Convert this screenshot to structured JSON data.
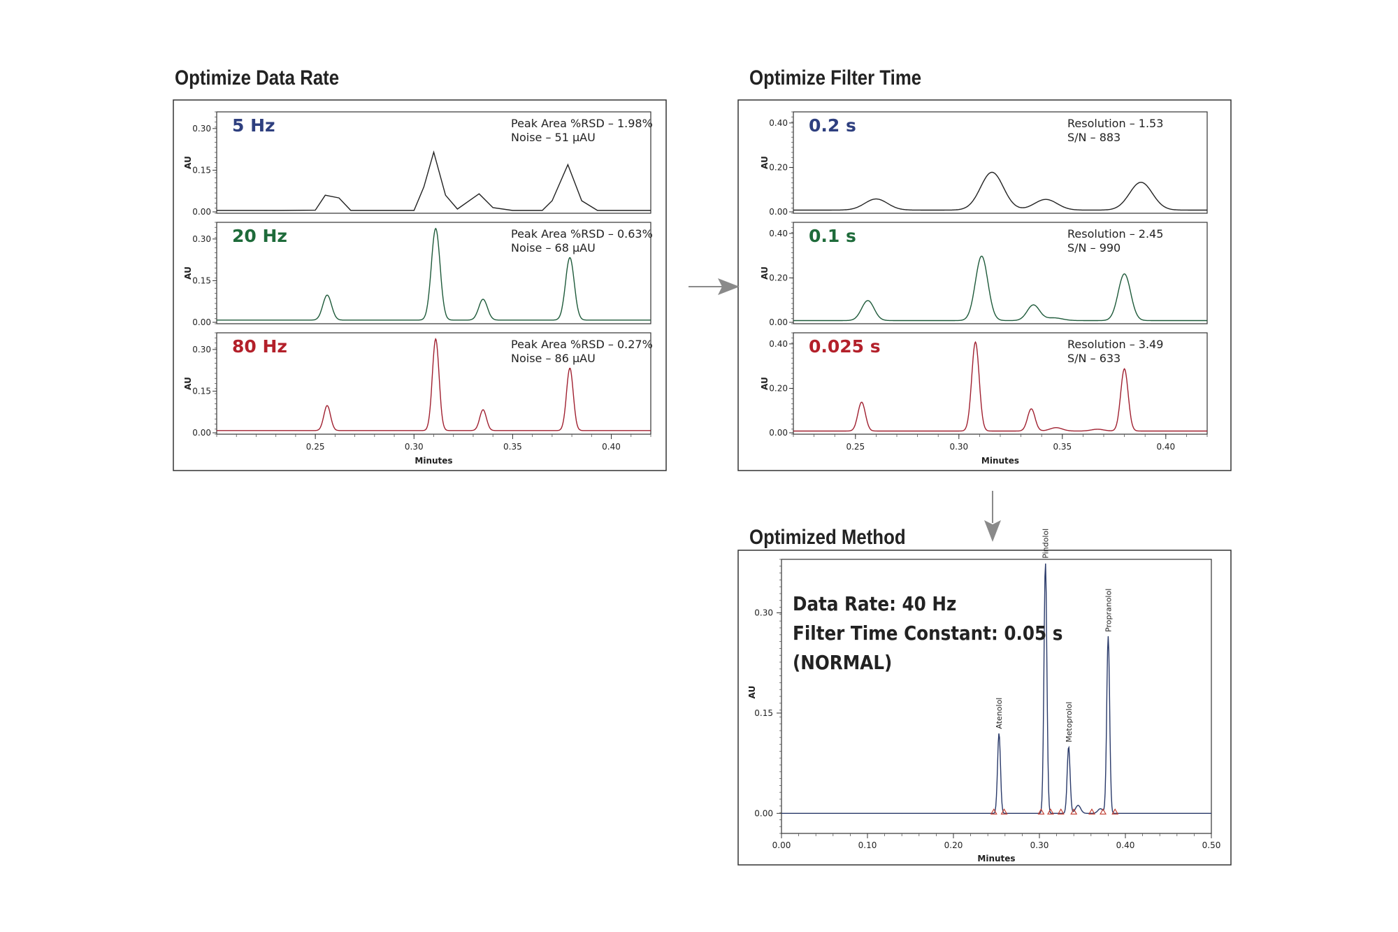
{
  "sections": {
    "data_rate_title": "Optimize Data Rate",
    "filter_time_title": "Optimize Filter Time",
    "optimized_title": "Optimized Method"
  },
  "colors": {
    "blue": "#2e3f7f",
    "green": "#1e6b3a",
    "red": "#b3202a",
    "trace_dark": "#222222",
    "marker_red": "#c0392b",
    "arrow": "#8a8a8a"
  },
  "chart_data": [
    {
      "id": "data_rate",
      "type": "line",
      "xlabel": "Minutes",
      "xlim": [
        0.2,
        0.42
      ],
      "xticks": [
        "0.25",
        "0.30",
        "0.35",
        "0.40"
      ],
      "panels": [
        {
          "label": "5 Hz",
          "label_color": "#2e3f7f",
          "trace_color": "#222222",
          "ylabel": "AU",
          "ylim": [
            0.0,
            0.36
          ],
          "yticks": [
            "0.00",
            "0.15",
            "0.30"
          ],
          "stats": [
            "Peak Area %RSD – 1.98%",
            "Noise – 51 µAU"
          ],
          "x": [
            0.2,
            0.233,
            0.25,
            0.255,
            0.262,
            0.268,
            0.28,
            0.283,
            0.3,
            0.305,
            0.31,
            0.316,
            0.322,
            0.33,
            0.333,
            0.34,
            0.35,
            0.365,
            0.37,
            0.378,
            0.385,
            0.393,
            0.42
          ],
          "y": [
            0.005,
            0.005,
            0.006,
            0.06,
            0.05,
            0.005,
            0.005,
            0.005,
            0.005,
            0.09,
            0.215,
            0.06,
            0.01,
            0.05,
            0.065,
            0.015,
            0.005,
            0.005,
            0.04,
            0.17,
            0.04,
            0.005,
            0.005
          ]
        },
        {
          "label": "20 Hz",
          "label_color": "#1e6b3a",
          "trace_color": "#1e5a3a",
          "ylabel": "AU",
          "ylim": [
            0.0,
            0.36
          ],
          "yticks": [
            "0.00",
            "0.15",
            "0.30"
          ],
          "stats": [
            "Peak Area %RSD – 0.63%",
            "Noise – 68 µAU"
          ],
          "peaks": [
            [
              0.256,
              0.09,
              0.0022
            ],
            [
              0.311,
              0.33,
              0.0022
            ],
            [
              0.335,
              0.075,
              0.0022
            ],
            [
              0.379,
              0.225,
              0.0022
            ]
          ]
        },
        {
          "label": "80 Hz",
          "label_color": "#b3202a",
          "trace_color": "#a02030",
          "ylabel": "AU",
          "ylim": [
            0.0,
            0.36
          ],
          "yticks": [
            "0.00",
            "0.15",
            "0.30"
          ],
          "stats": [
            "Peak Area %RSD – 0.27%",
            "Noise – 86 µAU"
          ],
          "peaks": [
            [
              0.256,
              0.09,
              0.0017
            ],
            [
              0.311,
              0.33,
              0.0017
            ],
            [
              0.335,
              0.075,
              0.0017
            ],
            [
              0.379,
              0.225,
              0.0017
            ]
          ]
        }
      ]
    },
    {
      "id": "filter_time",
      "type": "line",
      "xlabel": "Minutes",
      "xlim": [
        0.22,
        0.42
      ],
      "xticks": [
        "0.25",
        "0.30",
        "0.35",
        "0.40"
      ],
      "panels": [
        {
          "label": "0.2 s",
          "label_color": "#2e3f7f",
          "trace_color": "#222222",
          "ylabel": "AU",
          "ylim": [
            0.0,
            0.45
          ],
          "yticks": [
            "0.00",
            "0.20",
            "0.40"
          ],
          "stats": [
            "Resolution – 1.53",
            "S/N – 883"
          ],
          "peaks": [
            [
              0.26,
              0.05,
              0.0055
            ],
            [
              0.316,
              0.17,
              0.0055
            ],
            [
              0.342,
              0.048,
              0.0055
            ],
            [
              0.388,
              0.125,
              0.0055
            ]
          ]
        },
        {
          "label": "0.1 s",
          "label_color": "#1e6b3a",
          "trace_color": "#1e5a3a",
          "ylabel": "AU",
          "ylim": [
            0.0,
            0.45
          ],
          "yticks": [
            "0.00",
            "0.20",
            "0.40"
          ],
          "stats": [
            "Resolution – 2.45",
            "S/N – 990"
          ],
          "peaks": [
            [
              0.256,
              0.09,
              0.003
            ],
            [
              0.311,
              0.29,
              0.003
            ],
            [
              0.336,
              0.07,
              0.003
            ],
            [
              0.346,
              0.012,
              0.004
            ],
            [
              0.38,
              0.21,
              0.003
            ]
          ]
        },
        {
          "label": "0.025 s",
          "label_color": "#b3202a",
          "trace_color": "#a02030",
          "ylabel": "AU",
          "ylim": [
            0.0,
            0.45
          ],
          "yticks": [
            "0.00",
            "0.20",
            "0.40"
          ],
          "stats": [
            "Resolution – 3.49",
            "S/N – 633"
          ],
          "peaks": [
            [
              0.253,
              0.13,
              0.0018
            ],
            [
              0.308,
              0.4,
              0.0018
            ],
            [
              0.335,
              0.1,
              0.0018
            ],
            [
              0.347,
              0.015,
              0.003
            ],
            [
              0.367,
              0.008,
              0.003
            ],
            [
              0.38,
              0.28,
              0.0018
            ]
          ]
        }
      ]
    },
    {
      "id": "optimized",
      "type": "line",
      "xlabel": "Minutes",
      "xlim": [
        0.0,
        0.5
      ],
      "xticks": [
        "0.00",
        "0.10",
        "0.20",
        "0.30",
        "0.40",
        "0.50"
      ],
      "ylabel": "AU",
      "ylim": [
        -0.03,
        0.38
      ],
      "yticks": [
        "0.00",
        "0.15",
        "0.30"
      ],
      "trace_color": "#2a3a6a",
      "annotation_lines": [
        "Data Rate: 40 Hz",
        "Filter Time Constant: 0.05 s",
        "(NORMAL)"
      ],
      "peaks": [
        [
          0.253,
          0.12,
          0.0017,
          "Atenolol"
        ],
        [
          0.307,
          0.375,
          0.0017,
          "Pindolol"
        ],
        [
          0.334,
          0.1,
          0.0017,
          "Metoprolol"
        ],
        [
          0.345,
          0.012,
          0.003,
          ""
        ],
        [
          0.371,
          0.007,
          0.003,
          ""
        ],
        [
          0.38,
          0.265,
          0.0017,
          "Propranolol"
        ]
      ],
      "markers_x": [
        0.247,
        0.259,
        0.302,
        0.313,
        0.325,
        0.34,
        0.361,
        0.374,
        0.388
      ]
    }
  ]
}
